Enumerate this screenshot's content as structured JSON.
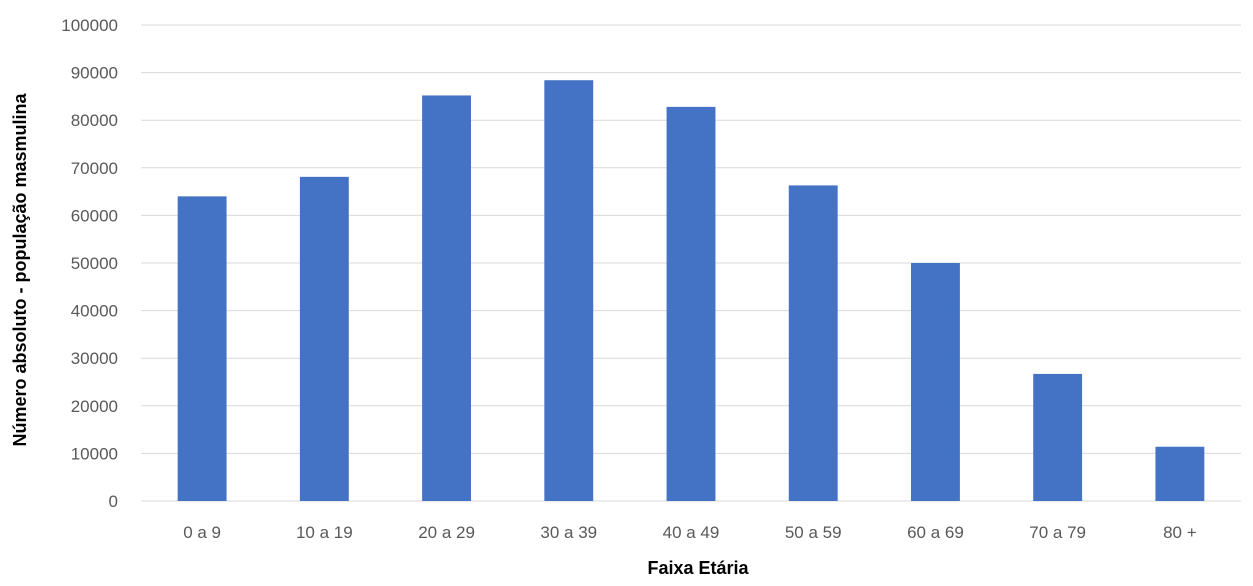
{
  "chart_data": {
    "type": "bar",
    "title": "",
    "xlabel": "Faixa Etária",
    "ylabel": "Número absoluto - população masmulina",
    "categories": [
      "0 a 9",
      "10 a 19",
      "20 a 29",
      "30 a 39",
      "40 a 49",
      "50 a 59",
      "60 a 69",
      "70 a 79",
      "80 +"
    ],
    "series": [
      {
        "values": [
          64000,
          68100,
          85200,
          88400,
          82800,
          66300,
          50000,
          26700,
          11400
        ]
      }
    ],
    "ylim": [
      0,
      100000
    ],
    "yticks": [
      0,
      10000,
      20000,
      30000,
      40000,
      50000,
      60000,
      70000,
      80000,
      90000,
      100000
    ],
    "grid": true,
    "legend": "none",
    "colors": {
      "bar": "#4472C4",
      "grid": "#D9D9D9",
      "tick_text": "#595959"
    }
  }
}
